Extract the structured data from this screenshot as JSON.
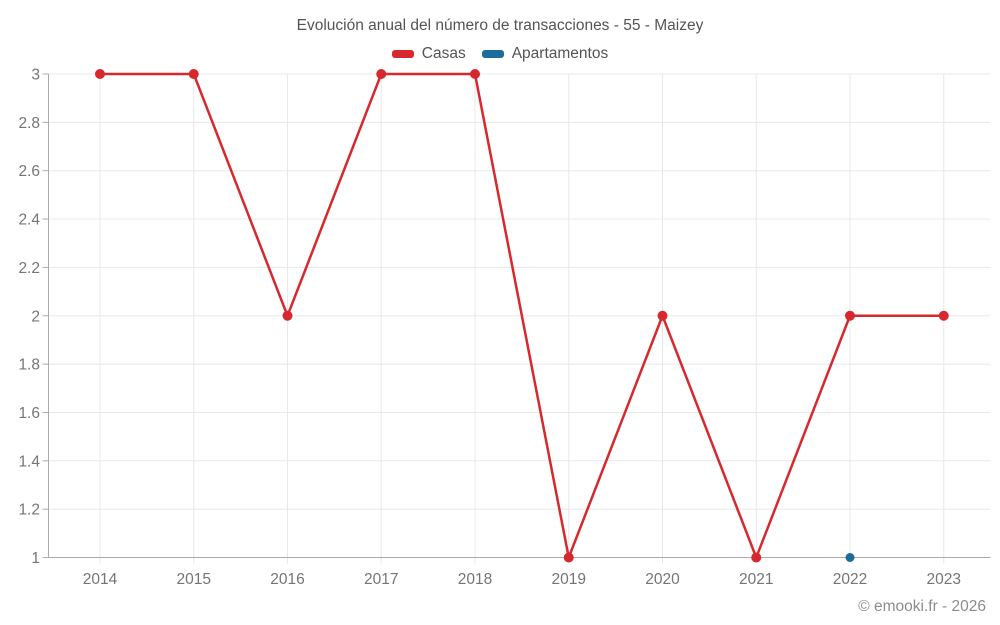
{
  "chart_data": {
    "type": "line",
    "title": "Evolución anual del número de transacciones - 55 - Maizey",
    "categories": [
      "2014",
      "2015",
      "2016",
      "2017",
      "2018",
      "2019",
      "2020",
      "2021",
      "2022",
      "2023"
    ],
    "series": [
      {
        "name": "Casas",
        "color": "#d7282d",
        "values": [
          3,
          3,
          2,
          3,
          3,
          1,
          2,
          1,
          2,
          2
        ]
      },
      {
        "name": "Apartamentos",
        "color": "#1b6d9c",
        "values": [
          null,
          null,
          null,
          null,
          null,
          null,
          null,
          null,
          1,
          null
        ]
      }
    ],
    "ylim": [
      1,
      3
    ],
    "yticks": [
      1,
      1.2,
      1.4,
      1.6,
      1.8,
      2,
      2.2,
      2.4,
      2.6,
      2.8,
      3
    ],
    "grid": true,
    "legend_position": "top",
    "xlabel": "",
    "ylabel": ""
  },
  "colors": {
    "grid": "#e8e8e8",
    "axis": "#ababab",
    "tick_text": "#757575",
    "title_text": "#545454",
    "footer_text": "#8c8c8c"
  },
  "footer": {
    "copyright": "© emooki.fr - 2026"
  }
}
